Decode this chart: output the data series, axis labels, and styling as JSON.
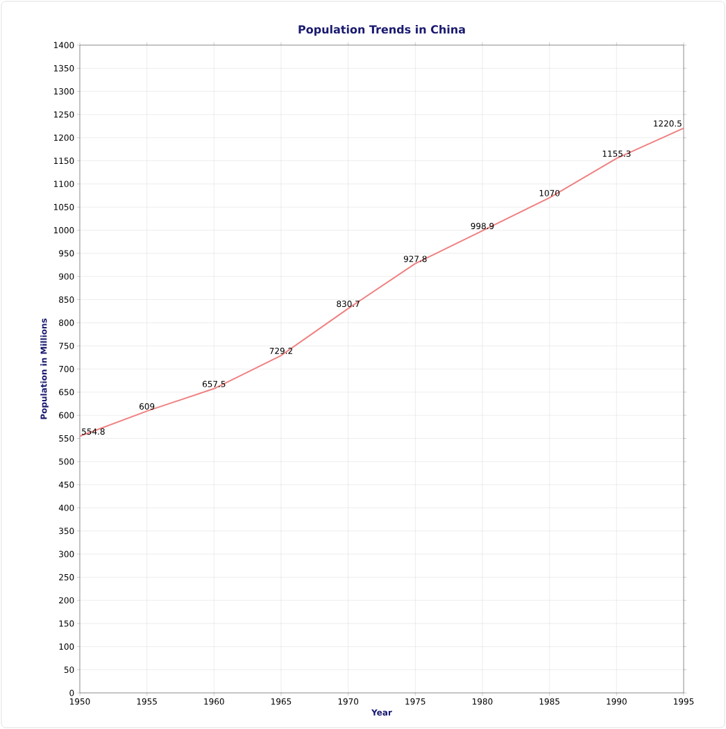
{
  "chart_data": {
    "type": "line",
    "title": "Population Trends in China",
    "xlabel": "Year",
    "ylabel": "Population in Millions",
    "x": [
      1950,
      1955,
      1960,
      1965,
      1970,
      1975,
      1980,
      1985,
      1990,
      1995
    ],
    "series": [
      {
        "color": "#f08080",
        "values": [
          554.8,
          609,
          657.5,
          729.2,
          830.7,
          927.8,
          998.9,
          1070,
          1155.3,
          1220.5
        ]
      }
    ],
    "xlim": [
      1950,
      1995
    ],
    "xticks": [
      1950,
      1955,
      1960,
      1965,
      1970,
      1975,
      1980,
      1985,
      1990,
      1995
    ],
    "ylim": [
      0,
      1400
    ],
    "yticks": [
      0,
      50,
      100,
      150,
      200,
      250,
      300,
      350,
      400,
      450,
      500,
      550,
      600,
      650,
      700,
      750,
      800,
      850,
      900,
      950,
      1000,
      1050,
      1100,
      1150,
      1200,
      1250,
      1300,
      1350,
      1400
    ],
    "grid": true,
    "data_labels": true,
    "marker": "none",
    "line_style": "solid"
  }
}
